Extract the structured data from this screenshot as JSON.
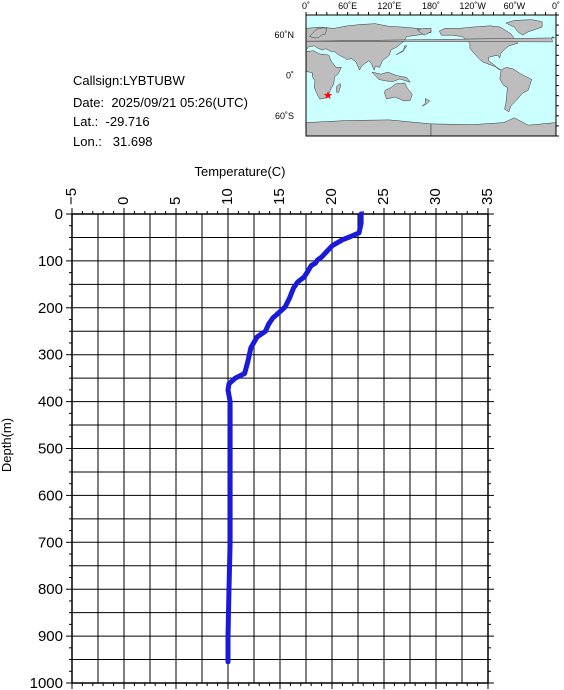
{
  "station": {
    "callsign_label": "Callsign:",
    "callsign": "LYBTUBW",
    "date_label": "Date:",
    "date": "2025/09/21 05:26(UTC)",
    "lat_label": "Lat.:",
    "lat": "-29.716",
    "lon_label": "Lon.:",
    "lon": "31.698"
  },
  "map": {
    "lon_ticks": [
      "0˚",
      "60˚E",
      "120˚E",
      "180˚",
      "120˚W",
      "60˚W",
      "0˚"
    ],
    "lat_ticks": [
      "60˚N",
      "0˚",
      "60˚S"
    ],
    "marker": {
      "lon": 31.698,
      "lat": -29.716,
      "color": "#ff0000"
    },
    "ocean_color": "#ccffff",
    "land_color": "#bdbdbd"
  },
  "chart_data": {
    "type": "line",
    "xlabel": "Temperature(C)",
    "ylabel": "Depth(m)",
    "xlim": [
      -5,
      35
    ],
    "ylim": [
      1000,
      0
    ],
    "x_ticks": [
      -5,
      0,
      5,
      10,
      15,
      20,
      25,
      30,
      35
    ],
    "y_ticks": [
      0,
      100,
      200,
      300,
      400,
      500,
      600,
      700,
      800,
      900,
      1000
    ],
    "grid": true,
    "line_color": "#1a1adb",
    "series": [
      {
        "points": [
          [
            22.8,
            0
          ],
          [
            22.8,
            20
          ],
          [
            22.6,
            40
          ],
          [
            21.8,
            48
          ],
          [
            21.0,
            55
          ],
          [
            20.0,
            68
          ],
          [
            19.5,
            80
          ],
          [
            19.0,
            92
          ],
          [
            18.6,
            98
          ],
          [
            18.4,
            105
          ],
          [
            18.0,
            110
          ],
          [
            17.6,
            125
          ],
          [
            17.3,
            135
          ],
          [
            16.7,
            145
          ],
          [
            16.3,
            158
          ],
          [
            15.9,
            180
          ],
          [
            15.5,
            198
          ],
          [
            15.0,
            208
          ],
          [
            14.3,
            222
          ],
          [
            13.9,
            235
          ],
          [
            13.6,
            250
          ],
          [
            12.8,
            262
          ],
          [
            12.2,
            285
          ],
          [
            11.9,
            315
          ],
          [
            11.6,
            340
          ],
          [
            10.7,
            350
          ],
          [
            10.1,
            362
          ],
          [
            10.0,
            375
          ],
          [
            10.2,
            400
          ],
          [
            10.2,
            500
          ],
          [
            10.2,
            600
          ],
          [
            10.2,
            700
          ],
          [
            10.1,
            800
          ],
          [
            10.0,
            900
          ],
          [
            10.0,
            955
          ]
        ]
      }
    ]
  }
}
